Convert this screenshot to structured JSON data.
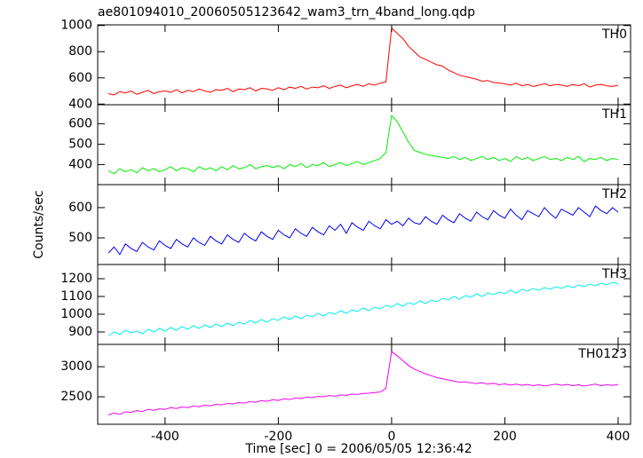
{
  "chart_data": {
    "type": "line",
    "title": "ae801094010_20060505123642_wam3_trn_4band_long.qdp",
    "xlabel": "Time [sec] 0 = 2006/05/05 12:36:42",
    "ylabel": "Counts/sec",
    "xlim": [
      -519,
      422
    ],
    "xticks": [
      -400,
      -200,
      0,
      200,
      400
    ],
    "x": [
      -500,
      -490,
      -480,
      -470,
      -460,
      -450,
      -440,
      -430,
      -420,
      -410,
      -400,
      -390,
      -380,
      -370,
      -360,
      -350,
      -340,
      -330,
      -320,
      -310,
      -300,
      -290,
      -280,
      -270,
      -260,
      -250,
      -240,
      -230,
      -220,
      -210,
      -200,
      -190,
      -180,
      -170,
      -160,
      -150,
      -140,
      -130,
      -120,
      -110,
      -100,
      -90,
      -80,
      -70,
      -60,
      -50,
      -40,
      -30,
      -20,
      -10,
      0,
      10,
      20,
      30,
      40,
      50,
      60,
      70,
      80,
      90,
      100,
      110,
      120,
      130,
      140,
      150,
      160,
      170,
      180,
      190,
      200,
      210,
      220,
      230,
      240,
      250,
      260,
      270,
      280,
      290,
      300,
      310,
      320,
      330,
      340,
      350,
      360,
      370,
      380,
      390,
      400
    ],
    "panels": [
      {
        "label": "TH0",
        "color": "#ff0000",
        "ylim": [
          395,
          1005
        ],
        "yticks": [
          400,
          600,
          800,
          1000
        ],
        "values": [
          480,
          470,
          495,
          485,
          500,
          475,
          490,
          505,
          480,
          495,
          500,
          490,
          510,
          485,
          505,
          495,
          515,
          500,
          490,
          510,
          505,
          520,
          495,
          515,
          510,
          525,
          500,
          520,
          515,
          505,
          525,
          510,
          530,
          520,
          535,
          515,
          530,
          525,
          540,
          520,
          535,
          545,
          525,
          540,
          550,
          535,
          555,
          545,
          560,
          570,
          980,
          940,
          900,
          840,
          800,
          760,
          740,
          720,
          700,
          690,
          660,
          640,
          620,
          610,
          600,
          590,
          575,
          580,
          565,
          560,
          555,
          545,
          560,
          540,
          550,
          535,
          545,
          555,
          540,
          550,
          545,
          535,
          550,
          540,
          555,
          530,
          545,
          550,
          540,
          535,
          545
        ]
      },
      {
        "label": "TH1",
        "color": "#00ee00",
        "ylim": [
          302,
          693
        ],
        "yticks": [
          400,
          500,
          600
        ],
        "values": [
          370,
          355,
          380,
          365,
          375,
          360,
          385,
          370,
          380,
          365,
          375,
          390,
          370,
          385,
          380,
          365,
          390,
          375,
          385,
          370,
          390,
          375,
          395,
          380,
          385,
          400,
          380,
          390,
          395,
          385,
          395,
          380,
          400,
          390,
          405,
          385,
          400,
          395,
          410,
          390,
          400,
          410,
          395,
          405,
          415,
          400,
          410,
          420,
          430,
          460,
          640,
          610,
          560,
          510,
          470,
          460,
          450,
          445,
          440,
          435,
          430,
          440,
          425,
          435,
          420,
          430,
          440,
          425,
          435,
          420,
          430,
          415,
          440,
          425,
          435,
          420,
          430,
          440,
          425,
          430,
          420,
          435,
          425,
          440,
          415,
          430,
          425,
          435,
          420,
          430,
          425
        ]
      },
      {
        "label": "TH2",
        "color": "#0000ee",
        "ylim": [
          412,
          676
        ],
        "yticks": [
          500,
          600
        ],
        "values": [
          450,
          470,
          445,
          480,
          465,
          455,
          485,
          470,
          460,
          490,
          475,
          465,
          495,
          480,
          470,
          500,
          485,
          475,
          505,
          490,
          480,
          510,
          495,
          485,
          515,
          500,
          490,
          520,
          505,
          495,
          525,
          510,
          500,
          530,
          515,
          505,
          535,
          520,
          510,
          540,
          525,
          545,
          515,
          550,
          535,
          525,
          555,
          540,
          530,
          560,
          545,
          555,
          540,
          565,
          550,
          545,
          570,
          555,
          545,
          575,
          560,
          550,
          580,
          565,
          555,
          585,
          570,
          560,
          590,
          575,
          565,
          595,
          575,
          560,
          590,
          580,
          570,
          600,
          580,
          565,
          595,
          585,
          575,
          600,
          585,
          570,
          605,
          590,
          580,
          600,
          585
        ]
      },
      {
        "label": "TH3",
        "color": "#00eeee",
        "ylim": [
          830,
          1280
        ],
        "yticks": [
          900,
          1000,
          1100,
          1200
        ],
        "values": [
          880,
          900,
          885,
          910,
          895,
          905,
          890,
          915,
          900,
          920,
          905,
          925,
          910,
          930,
          915,
          935,
          920,
          940,
          925,
          945,
          930,
          950,
          935,
          955,
          945,
          965,
          950,
          970,
          955,
          975,
          965,
          985,
          970,
          990,
          975,
          995,
          985,
          1005,
          990,
          1010,
          1000,
          1020,
          1005,
          1025,
          1015,
          1035,
          1020,
          1040,
          1030,
          1050,
          1040,
          1060,
          1045,
          1065,
          1055,
          1075,
          1060,
          1080,
          1070,
          1090,
          1080,
          1100,
          1085,
          1105,
          1095,
          1115,
          1100,
          1120,
          1110,
          1125,
          1115,
          1135,
          1120,
          1140,
          1130,
          1145,
          1135,
          1150,
          1140,
          1155,
          1145,
          1160,
          1150,
          1165,
          1155,
          1170,
          1160,
          1175,
          1165,
          1180,
          1170
        ]
      },
      {
        "label": "TH0123",
        "color": "#ee00ee",
        "ylim": [
          2043,
          3371
        ],
        "yticks": [
          2500,
          3000
        ],
        "values": [
          2200,
          2230,
          2210,
          2250,
          2240,
          2270,
          2255,
          2290,
          2275,
          2300,
          2290,
          2320,
          2305,
          2330,
          2320,
          2345,
          2335,
          2360,
          2350,
          2375,
          2365,
          2390,
          2380,
          2405,
          2395,
          2420,
          2410,
          2435,
          2425,
          2450,
          2440,
          2465,
          2455,
          2480,
          2470,
          2495,
          2485,
          2505,
          2500,
          2520,
          2510,
          2530,
          2525,
          2545,
          2540,
          2555,
          2560,
          2570,
          2580,
          2640,
          3250,
          3180,
          3100,
          3020,
          2960,
          2920,
          2880,
          2850,
          2820,
          2800,
          2780,
          2760,
          2740,
          2750,
          2730,
          2720,
          2735,
          2710,
          2725,
          2700,
          2715,
          2695,
          2710,
          2690,
          2705,
          2685,
          2700,
          2680,
          2695,
          2710,
          2690,
          2705,
          2685,
          2700,
          2680,
          2695,
          2710,
          2685,
          2700,
          2690,
          2705
        ]
      }
    ]
  }
}
